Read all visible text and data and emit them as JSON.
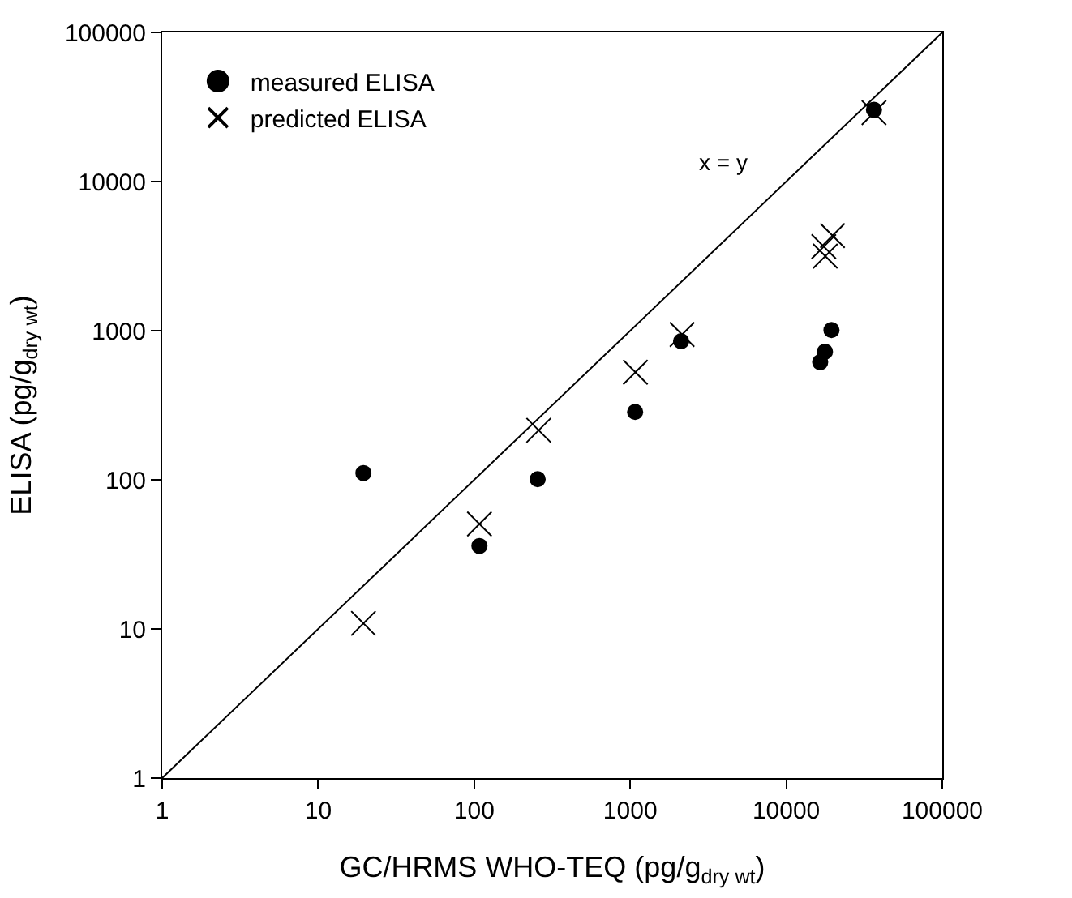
{
  "chart_data": {
    "type": "scatter",
    "xlabel": "GC/HRMS WHO-TEQ (pg/g$_{dry wt}$)",
    "ylabel": "ELISA (pg/g$_{dry wt}$)",
    "log": "xy",
    "xlim": [
      1,
      100000
    ],
    "ylim": [
      1,
      100000
    ],
    "xticks": [
      1,
      10,
      100,
      1000,
      10000,
      100000
    ],
    "yticks": [
      1,
      10,
      100,
      1000,
      10000,
      100000
    ],
    "legend": "top left",
    "series": [
      {
        "name": "measured ELISA",
        "color": "#000000",
        "marker": "circle",
        "x": [
          19.5,
          108,
          255,
          1075,
          2120,
          16500,
          17700,
          19500,
          36500
        ],
        "values": [
          111,
          36,
          101,
          285,
          850,
          615,
          723,
          1010,
          30300
        ]
      },
      {
        "name": "predicted ELISA",
        "color": "#000000",
        "marker": "cross",
        "x": [
          19.5,
          108,
          259,
          1080,
          2150,
          19800,
          17400,
          17800,
          36500
        ],
        "values": [
          10.9,
          50.6,
          215,
          527,
          942,
          4340,
          3660,
          3160,
          29000
        ]
      },
      {
        "type": "line",
        "color": "#000000",
        "marker": "none",
        "x": [
          1,
          100000
        ],
        "values": [
          1,
          100000
        ]
      }
    ],
    "annotations": [
      "x = y"
    ]
  }
}
